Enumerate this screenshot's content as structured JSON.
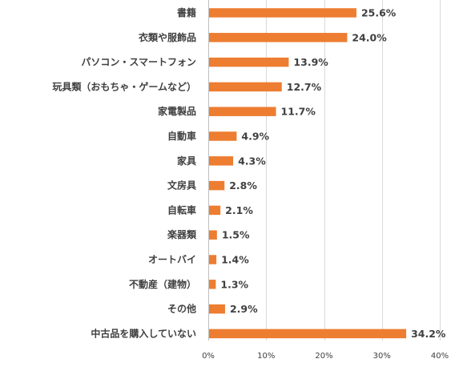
{
  "chart_data": {
    "type": "bar",
    "orientation": "horizontal",
    "categories": [
      "書籍",
      "衣類や服飾品",
      "パソコン・スマートフォン",
      "玩具類（おもちゃ・ゲームなど）",
      "家電製品",
      "自動車",
      "家具",
      "文房具",
      "自転車",
      "楽器類",
      "オートバイ",
      "不動産（建物）",
      "その他",
      "中古品を購入していない"
    ],
    "values": [
      25.6,
      24.0,
      13.9,
      12.7,
      11.7,
      4.9,
      4.3,
      2.8,
      2.1,
      1.5,
      1.4,
      1.3,
      2.9,
      34.2
    ],
    "value_labels": [
      "25.6%",
      "24.0%",
      "13.9%",
      "12.7%",
      "11.7%",
      "4.9%",
      "4.3%",
      "2.8%",
      "2.1%",
      "1.5%",
      "1.4%",
      "1.3%",
      "2.9%",
      "34.2%"
    ],
    "xlim": [
      0,
      40
    ],
    "xticks": [
      0,
      10,
      20,
      30,
      40
    ],
    "xtick_labels": [
      "0%",
      "10%",
      "20%",
      "30%",
      "40%"
    ],
    "bar_color": "#ED7D31",
    "grid": true,
    "legend": "none"
  }
}
